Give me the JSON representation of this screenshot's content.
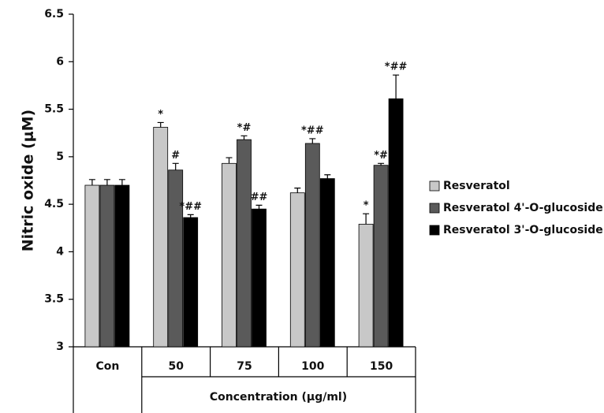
{
  "chart_data": {
    "type": "bar",
    "y_label": "Nitric oxide (μM)",
    "x_label": "Concentration (μg/ml)",
    "categories": [
      "Con",
      "50",
      "75",
      "100",
      "150"
    ],
    "ylim": [
      3,
      6.5
    ],
    "yticks": [
      3,
      3.5,
      4,
      4.5,
      5,
      5.5,
      6,
      6.5
    ],
    "grid": false,
    "legend": "right",
    "series": [
      {
        "name": "Resveratol",
        "color": "#c8c8c8",
        "values": [
          4.7,
          5.31,
          4.93,
          4.62,
          4.29
        ],
        "errors": [
          0.06,
          0.05,
          0.06,
          0.05,
          0.11
        ],
        "annotations": [
          null,
          "*",
          null,
          null,
          "*"
        ]
      },
      {
        "name": "Resveratol 4'-O-glucoside",
        "color": "#5a5a5a",
        "values": [
          4.7,
          4.86,
          5.18,
          5.14,
          4.91
        ],
        "errors": [
          0.06,
          0.07,
          0.04,
          0.05,
          0.02
        ],
        "annotations": [
          null,
          "#",
          "*#",
          "*##",
          "*#"
        ]
      },
      {
        "name": "Resveratol 3'-O-glucoside",
        "color": "#000000",
        "values": [
          4.7,
          4.36,
          4.45,
          4.77,
          5.61
        ],
        "errors": [
          0.06,
          0.03,
          0.04,
          0.04,
          0.25
        ],
        "annotations": [
          null,
          "*##",
          "##",
          null,
          "*##"
        ]
      }
    ]
  }
}
